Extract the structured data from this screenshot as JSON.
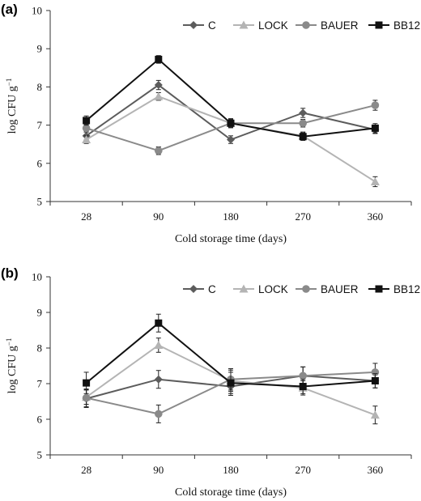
{
  "chart_data": [
    {
      "type": "line",
      "panel_label": "(a)",
      "categories": [
        "28",
        "90",
        "180",
        "270",
        "360"
      ],
      "ylim": [
        5,
        10
      ],
      "yticks": [
        "5",
        "6",
        "7",
        "8",
        "9",
        "10"
      ],
      "ylabel_main": "log CFU g",
      "ylabel_sup": "−1",
      "xlabel": "Cold storage time (days)",
      "legend_position": "top-right",
      "grid": false,
      "series": [
        {
          "name": "C",
          "color": "#5c5c5c",
          "marker": "diamond",
          "values": [
            6.72,
            8.05,
            6.62,
            7.32,
            6.88
          ],
          "errors": [
            0.1,
            0.12,
            0.1,
            0.12,
            0.1
          ]
        },
        {
          "name": "LOCK",
          "color": "#b4b4b4",
          "marker": "triangle",
          "values": [
            6.62,
            7.75,
            7.05,
            6.72,
            5.52
          ],
          "errors": [
            0.1,
            0.1,
            0.1,
            0.1,
            0.13
          ]
        },
        {
          "name": "BAUER",
          "color": "#8a8a8a",
          "marker": "circle",
          "values": [
            6.92,
            6.33,
            7.05,
            7.05,
            7.52
          ],
          "errors": [
            0.1,
            0.1,
            0.1,
            0.1,
            0.13
          ]
        },
        {
          "name": "BB12",
          "color": "#111111",
          "marker": "square",
          "values": [
            7.12,
            8.72,
            7.05,
            6.7,
            6.92
          ],
          "errors": [
            0.12,
            0.1,
            0.12,
            0.1,
            0.12
          ]
        }
      ]
    },
    {
      "type": "line",
      "panel_label": "(b)",
      "categories": [
        "28",
        "90",
        "180",
        "270",
        "360"
      ],
      "ylim": [
        5,
        10
      ],
      "yticks": [
        "5",
        "6",
        "7",
        "8",
        "9",
        "10"
      ],
      "ylabel_main": "log CFU g",
      "ylabel_sup": "−1",
      "xlabel": "Cold storage time (days)",
      "legend_position": "top-right",
      "grid": false,
      "series": [
        {
          "name": "C",
          "color": "#5c5c5c",
          "marker": "diamond",
          "values": [
            6.58,
            7.12,
            6.92,
            7.22,
            7.08
          ],
          "errors": [
            0.25,
            0.25,
            0.25,
            0.25,
            0.2
          ]
        },
        {
          "name": "LOCK",
          "color": "#b4b4b4",
          "marker": "triangle",
          "values": [
            6.62,
            8.08,
            7.08,
            6.88,
            6.12
          ],
          "errors": [
            0.2,
            0.2,
            0.3,
            0.2,
            0.25
          ]
        },
        {
          "name": "BAUER",
          "color": "#8a8a8a",
          "marker": "circle",
          "values": [
            6.6,
            6.15,
            7.12,
            7.22,
            7.32
          ],
          "errors": [
            0.25,
            0.25,
            0.3,
            0.25,
            0.25
          ]
        },
        {
          "name": "BB12",
          "color": "#111111",
          "marker": "square",
          "values": [
            7.02,
            8.7,
            7.02,
            6.92,
            7.08
          ],
          "errors": [
            0.3,
            0.25,
            0.3,
            0.2,
            0.2
          ]
        }
      ]
    }
  ]
}
